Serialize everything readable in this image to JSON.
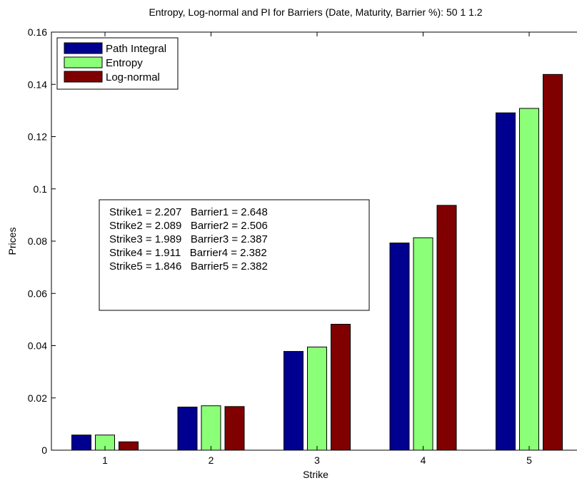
{
  "chart_data": {
    "type": "bar",
    "title": "Entropy, Log-normal and PI for Barriers (Date, Maturity, Barrier %): 50  1  1.2",
    "xlabel": "Strike",
    "ylabel": "Prices",
    "categories": [
      "1",
      "2",
      "3",
      "4",
      "5"
    ],
    "ylim": [
      0,
      0.16
    ],
    "yticks": [
      "0",
      "0.02",
      "0.04",
      "0.06",
      "0.08",
      "0.1",
      "0.12",
      "0.14",
      "0.16"
    ],
    "ytick_values": [
      0,
      0.02,
      0.04,
      0.06,
      0.08,
      0.1,
      0.12,
      0.14,
      0.16
    ],
    "grid": false,
    "legend_position": "top-left",
    "series": [
      {
        "name": "Path Integral",
        "color": "#000090",
        "values": [
          0.0058,
          0.0165,
          0.0378,
          0.0793,
          0.1291
        ]
      },
      {
        "name": "Entropy",
        "color": "#8cff78",
        "values": [
          0.0058,
          0.017,
          0.0395,
          0.0813,
          0.1308
        ]
      },
      {
        "name": "Log-normal",
        "color": "#800000",
        "values": [
          0.0032,
          0.0167,
          0.0482,
          0.0937,
          0.1438
        ]
      }
    ],
    "annotation": [
      "Strike1 = 2.207   Barrier1 = 2.648",
      "Strike2 = 2.089   Barrier2 = 2.506",
      "Strike3 = 1.989   Barrier3 = 2.387",
      "Strike4 = 1.911   Barrier4 = 2.382",
      "Strike5 = 1.846   Barrier5 = 2.382"
    ]
  }
}
